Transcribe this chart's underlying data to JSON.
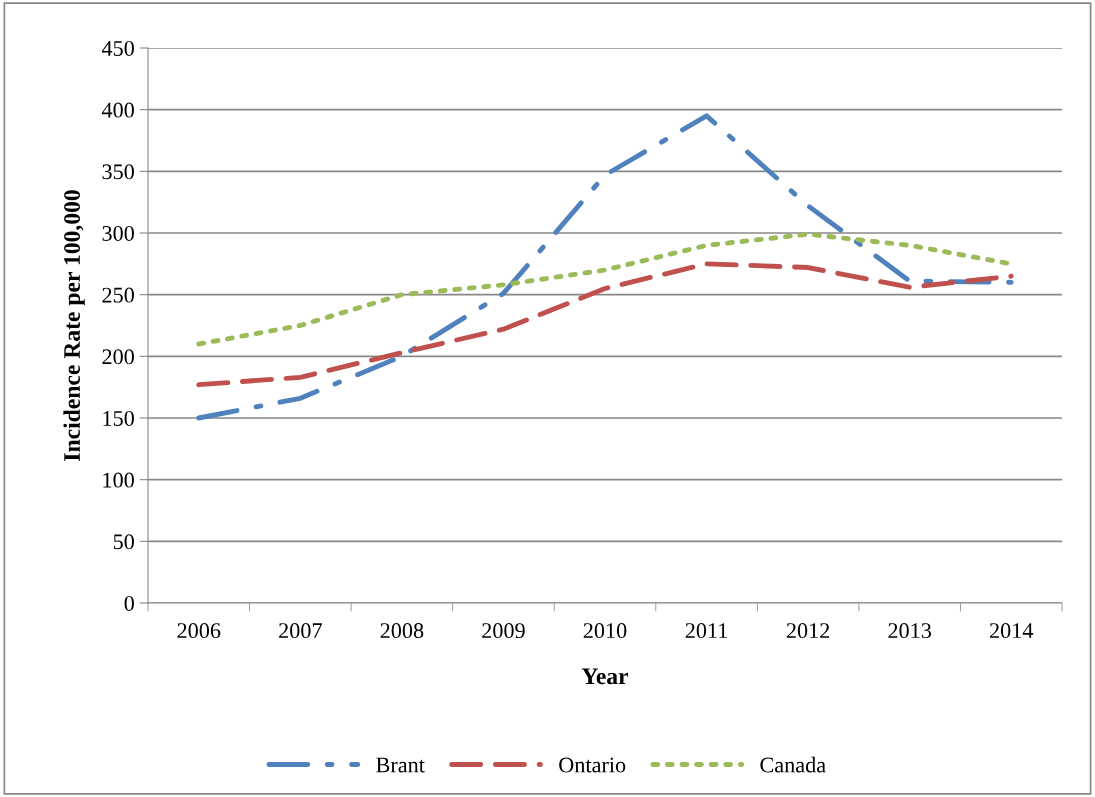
{
  "chart_data": {
    "type": "line",
    "xlabel": "Year",
    "ylabel": "Incidence Rate per 100,000",
    "categories": [
      "2006",
      "2007",
      "2008",
      "2009",
      "2010",
      "2011",
      "2012",
      "2013",
      "2014"
    ],
    "series": [
      {
        "name": "Brant",
        "color": "#4f81bd",
        "line_style": "dashdot",
        "values": [
          150,
          166,
          200,
          251,
          347,
          395,
          322,
          261,
          260
        ]
      },
      {
        "name": "Ontario",
        "color": "#c0504d",
        "line_style": "dashed",
        "values": [
          177,
          183,
          203,
          222,
          255,
          275,
          272,
          256,
          265
        ]
      },
      {
        "name": "Canada",
        "color": "#9bbb59",
        "line_style": "dotted",
        "values": [
          210,
          225,
          250,
          258,
          270,
          290,
          299,
          290,
          275
        ]
      }
    ],
    "ylim": [
      0,
      450
    ],
    "yticks": [
      0,
      50,
      100,
      150,
      200,
      250,
      300,
      350,
      400,
      450
    ],
    "grid": "y",
    "legend": "bottom",
    "marker": "none"
  }
}
